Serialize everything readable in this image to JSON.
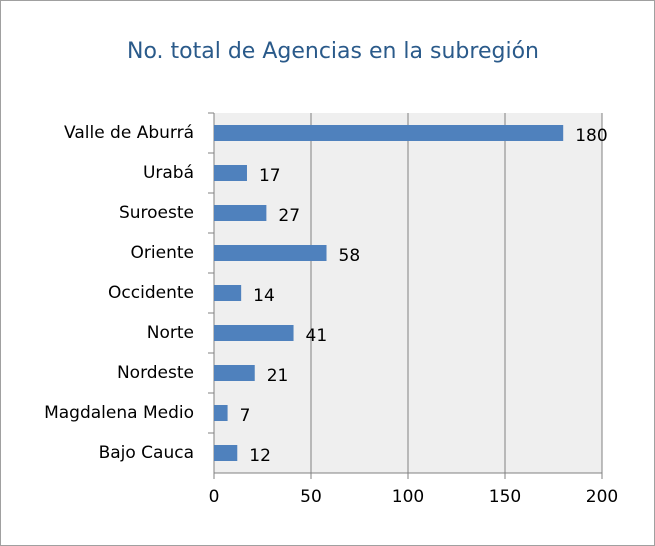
{
  "chart_data": {
    "type": "bar",
    "orientation": "horizontal",
    "title": "No. total de Agencias en la subregión",
    "categories": [
      "Valle de Aburrá",
      "Urabá",
      "Suroeste",
      "Oriente",
      "Occidente",
      "Norte",
      "Nordeste",
      "Magdalena Medio",
      "Bajo Cauca"
    ],
    "values": [
      180,
      17,
      27,
      58,
      14,
      41,
      21,
      7,
      12
    ],
    "color": "#4f81bd",
    "xlim": [
      0,
      200
    ],
    "xticks": [
      0,
      50,
      100,
      150,
      200
    ],
    "grid": true
  }
}
